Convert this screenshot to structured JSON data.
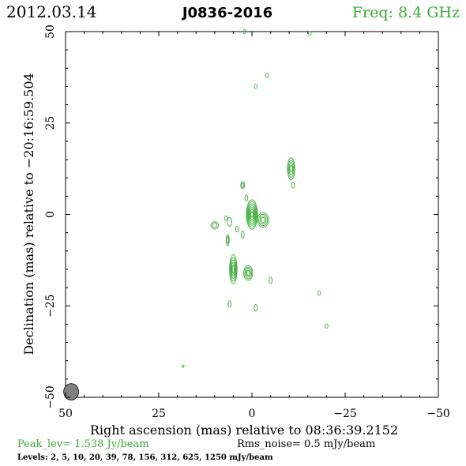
{
  "header": {
    "date": "2012.03.14",
    "source": "J0836-2016",
    "freq": "Freq: 8.4 GHz"
  },
  "footer": {
    "peak": "Peak_lev= 1.538 Jy/beam",
    "rms": "Rms_noise= 0.5 mJy/beam",
    "levels": "Levels: 2, 5, 10, 20, 39, 78, 156, 312, 625, 1250 mJy/beam"
  },
  "colors": {
    "contour": "#3aaa35",
    "header_green": "#3aaa35",
    "beam_fill": "#808080",
    "axes": "#000000"
  },
  "chart_data": {
    "type": "contour",
    "xlabel": "Right ascension (mas) relative to 08:36:39.2152",
    "ylabel": "Declination (mas) relative to −20:16:59.504",
    "xlim": [
      50,
      -50
    ],
    "ylim": [
      -50,
      50
    ],
    "xticks": [
      50,
      25,
      0,
      -25,
      -50
    ],
    "xtick_labels": [
      "50",
      "25",
      "0",
      "−25",
      "−50"
    ],
    "yticks": [
      -50,
      -25,
      0,
      25,
      50
    ],
    "ytick_labels": [
      "−50",
      "−25",
      "0",
      "25",
      "50"
    ],
    "beam": {
      "x": 48.5,
      "y": -48.5,
      "major_mas": 4.5,
      "minor_mas": 2.0
    },
    "components": [
      {
        "x": 0.0,
        "y": 0.0,
        "sx": 1.5,
        "sy": 4.0,
        "levels": 7
      },
      {
        "x": -3.0,
        "y": -1.5,
        "sx": 1.5,
        "sy": 2.0,
        "levels": 4
      },
      {
        "x": 5.0,
        "y": -15.0,
        "sx": 1.0,
        "sy": 4.0,
        "levels": 5
      },
      {
        "x": 1.0,
        "y": -16.0,
        "sx": 1.2,
        "sy": 2.0,
        "levels": 4
      },
      {
        "x": -10.5,
        "y": 12.5,
        "sx": 1.0,
        "sy": 3.0,
        "levels": 4
      },
      {
        "x": 2.5,
        "y": 8.0,
        "sx": 0.5,
        "sy": 1.0,
        "levels": 2
      },
      {
        "x": 6.5,
        "y": -7.0,
        "sx": 0.4,
        "sy": 1.5,
        "levels": 2
      },
      {
        "x": 10.0,
        "y": -3.0,
        "sx": 1.0,
        "sy": 1.0,
        "levels": 2
      },
      {
        "x": 6.0,
        "y": -2.0,
        "sx": 0.6,
        "sy": 1.2,
        "levels": 1
      },
      {
        "x": 4.0,
        "y": -4.0,
        "sx": 0.4,
        "sy": 0.8,
        "levels": 1
      },
      {
        "x": -1.0,
        "y": 35.0,
        "sx": 0.4,
        "sy": 0.6,
        "levels": 1
      },
      {
        "x": -4.0,
        "y": 38.0,
        "sx": 0.4,
        "sy": 0.6,
        "levels": 1
      },
      {
        "x": 2.0,
        "y": 50.0,
        "sx": 0.4,
        "sy": 0.6,
        "levels": 1
      },
      {
        "x": -15.5,
        "y": 49.5,
        "sx": 0.4,
        "sy": 0.6,
        "levels": 1
      },
      {
        "x": -11.0,
        "y": 8.0,
        "sx": 0.4,
        "sy": 0.8,
        "levels": 1
      },
      {
        "x": -5.0,
        "y": -18.0,
        "sx": 0.4,
        "sy": 0.9,
        "levels": 1
      },
      {
        "x": -18.0,
        "y": -21.5,
        "sx": 0.4,
        "sy": 0.6,
        "levels": 1
      },
      {
        "x": -20.0,
        "y": -30.5,
        "sx": 0.4,
        "sy": 0.6,
        "levels": 1
      },
      {
        "x": 6.0,
        "y": -24.5,
        "sx": 0.4,
        "sy": 0.9,
        "levels": 1
      },
      {
        "x": -1.0,
        "y": -25.5,
        "sx": 0.4,
        "sy": 0.9,
        "levels": 1
      },
      {
        "x": 18.5,
        "y": -41.5,
        "sx": 0.3,
        "sy": 0.3,
        "levels": 1
      },
      {
        "x": 1.5,
        "y": 4.5,
        "sx": 0.4,
        "sy": 0.8,
        "levels": 1
      },
      {
        "x": 2.5,
        "y": -5.5,
        "sx": 0.4,
        "sy": 1.0,
        "levels": 1
      },
      {
        "x": 7.0,
        "y": -1.0,
        "sx": 0.4,
        "sy": 0.6,
        "levels": 1
      }
    ]
  }
}
